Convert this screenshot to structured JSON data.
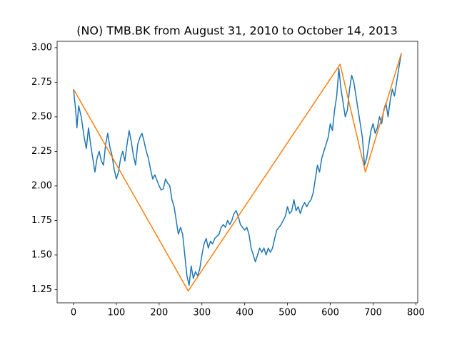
{
  "chart_data": {
    "type": "line",
    "title": "(NO) TMB.BK from August 31, 2010 to October 14, 2013",
    "xlim": [
      -38.3,
      804.3
    ],
    "ylim": [
      1.154,
      3.046
    ],
    "xticks": [
      0,
      100,
      200,
      300,
      400,
      500,
      600,
      700,
      800
    ],
    "yticks": [
      1.25,
      {
        "value": 1.5,
        "label": "1.50"
      },
      1.75,
      {
        "value": 2.0,
        "label": "2.00"
      },
      2.25,
      {
        "value": 2.5,
        "label": "2.50"
      },
      2.75,
      {
        "value": 3.0,
        "label": "3.00"
      }
    ],
    "grid": false,
    "series": [
      {
        "color": "#1f77b4",
        "x": [
          0,
          5,
          8,
          12,
          18,
          25,
          30,
          35,
          40,
          45,
          50,
          55,
          60,
          65,
          70,
          75,
          80,
          85,
          90,
          95,
          100,
          105,
          110,
          115,
          120,
          125,
          130,
          135,
          140,
          145,
          150,
          155,
          160,
          165,
          170,
          175,
          180,
          185,
          190,
          200,
          205,
          210,
          215,
          220,
          225,
          230,
          235,
          240,
          245,
          250,
          255,
          260,
          265,
          270,
          275,
          280,
          285,
          290,
          295,
          300,
          305,
          310,
          315,
          320,
          325,
          330,
          340,
          345,
          350,
          355,
          360,
          365,
          370,
          375,
          380,
          385,
          390,
          395,
          400,
          405,
          410,
          415,
          420,
          425,
          430,
          435,
          440,
          445,
          450,
          455,
          460,
          465,
          470,
          475,
          480,
          485,
          490,
          495,
          500,
          505,
          510,
          515,
          520,
          525,
          530,
          535,
          540,
          545,
          550,
          555,
          560,
          565,
          570,
          575,
          580,
          585,
          590,
          595,
          600,
          605,
          610,
          615,
          620,
          625,
          630,
          635,
          640,
          645,
          650,
          655,
          660,
          665,
          670,
          675,
          680,
          685,
          690,
          695,
          700,
          705,
          710,
          715,
          720,
          725,
          730,
          735,
          740,
          745,
          750,
          755,
          760,
          766
        ],
        "values": [
          2.7,
          2.55,
          2.42,
          2.58,
          2.5,
          2.35,
          2.27,
          2.42,
          2.3,
          2.2,
          2.1,
          2.2,
          2.25,
          2.18,
          2.15,
          2.3,
          2.38,
          2.28,
          2.22,
          2.12,
          2.05,
          2.1,
          2.2,
          2.25,
          2.18,
          2.3,
          2.4,
          2.32,
          2.22,
          2.15,
          2.3,
          2.35,
          2.38,
          2.32,
          2.25,
          2.2,
          2.12,
          2.05,
          2.08,
          2.0,
          1.97,
          1.98,
          2.05,
          2.02,
          2.0,
          1.9,
          1.85,
          1.75,
          1.65,
          1.7,
          1.65,
          1.5,
          1.35,
          1.28,
          1.42,
          1.33,
          1.38,
          1.35,
          1.4,
          1.5,
          1.58,
          1.62,
          1.55,
          1.6,
          1.58,
          1.62,
          1.65,
          1.7,
          1.72,
          1.7,
          1.75,
          1.72,
          1.75,
          1.8,
          1.82,
          1.78,
          1.72,
          1.7,
          1.68,
          1.7,
          1.65,
          1.55,
          1.5,
          1.45,
          1.5,
          1.55,
          1.52,
          1.55,
          1.5,
          1.55,
          1.52,
          1.55,
          1.62,
          1.68,
          1.7,
          1.72,
          1.75,
          1.78,
          1.85,
          1.8,
          1.82,
          1.9,
          1.82,
          1.85,
          1.8,
          1.85,
          1.88,
          1.85,
          1.88,
          1.9,
          1.95,
          2.05,
          2.15,
          2.1,
          2.2,
          2.25,
          2.3,
          2.35,
          2.45,
          2.4,
          2.55,
          2.65,
          2.85,
          2.7,
          2.6,
          2.5,
          2.55,
          2.7,
          2.8,
          2.75,
          2.65,
          2.55,
          2.45,
          2.35,
          2.15,
          2.2,
          2.3,
          2.4,
          2.45,
          2.38,
          2.42,
          2.5,
          2.45,
          2.55,
          2.6,
          2.5,
          2.62,
          2.7,
          2.65,
          2.75,
          2.85,
          2.96
        ]
      },
      {
        "color": "#ff7f0e",
        "x": [
          0,
          268,
          623,
          682,
          766
        ],
        "values": [
          2.7,
          1.24,
          2.88,
          2.1,
          2.96
        ]
      }
    ]
  }
}
